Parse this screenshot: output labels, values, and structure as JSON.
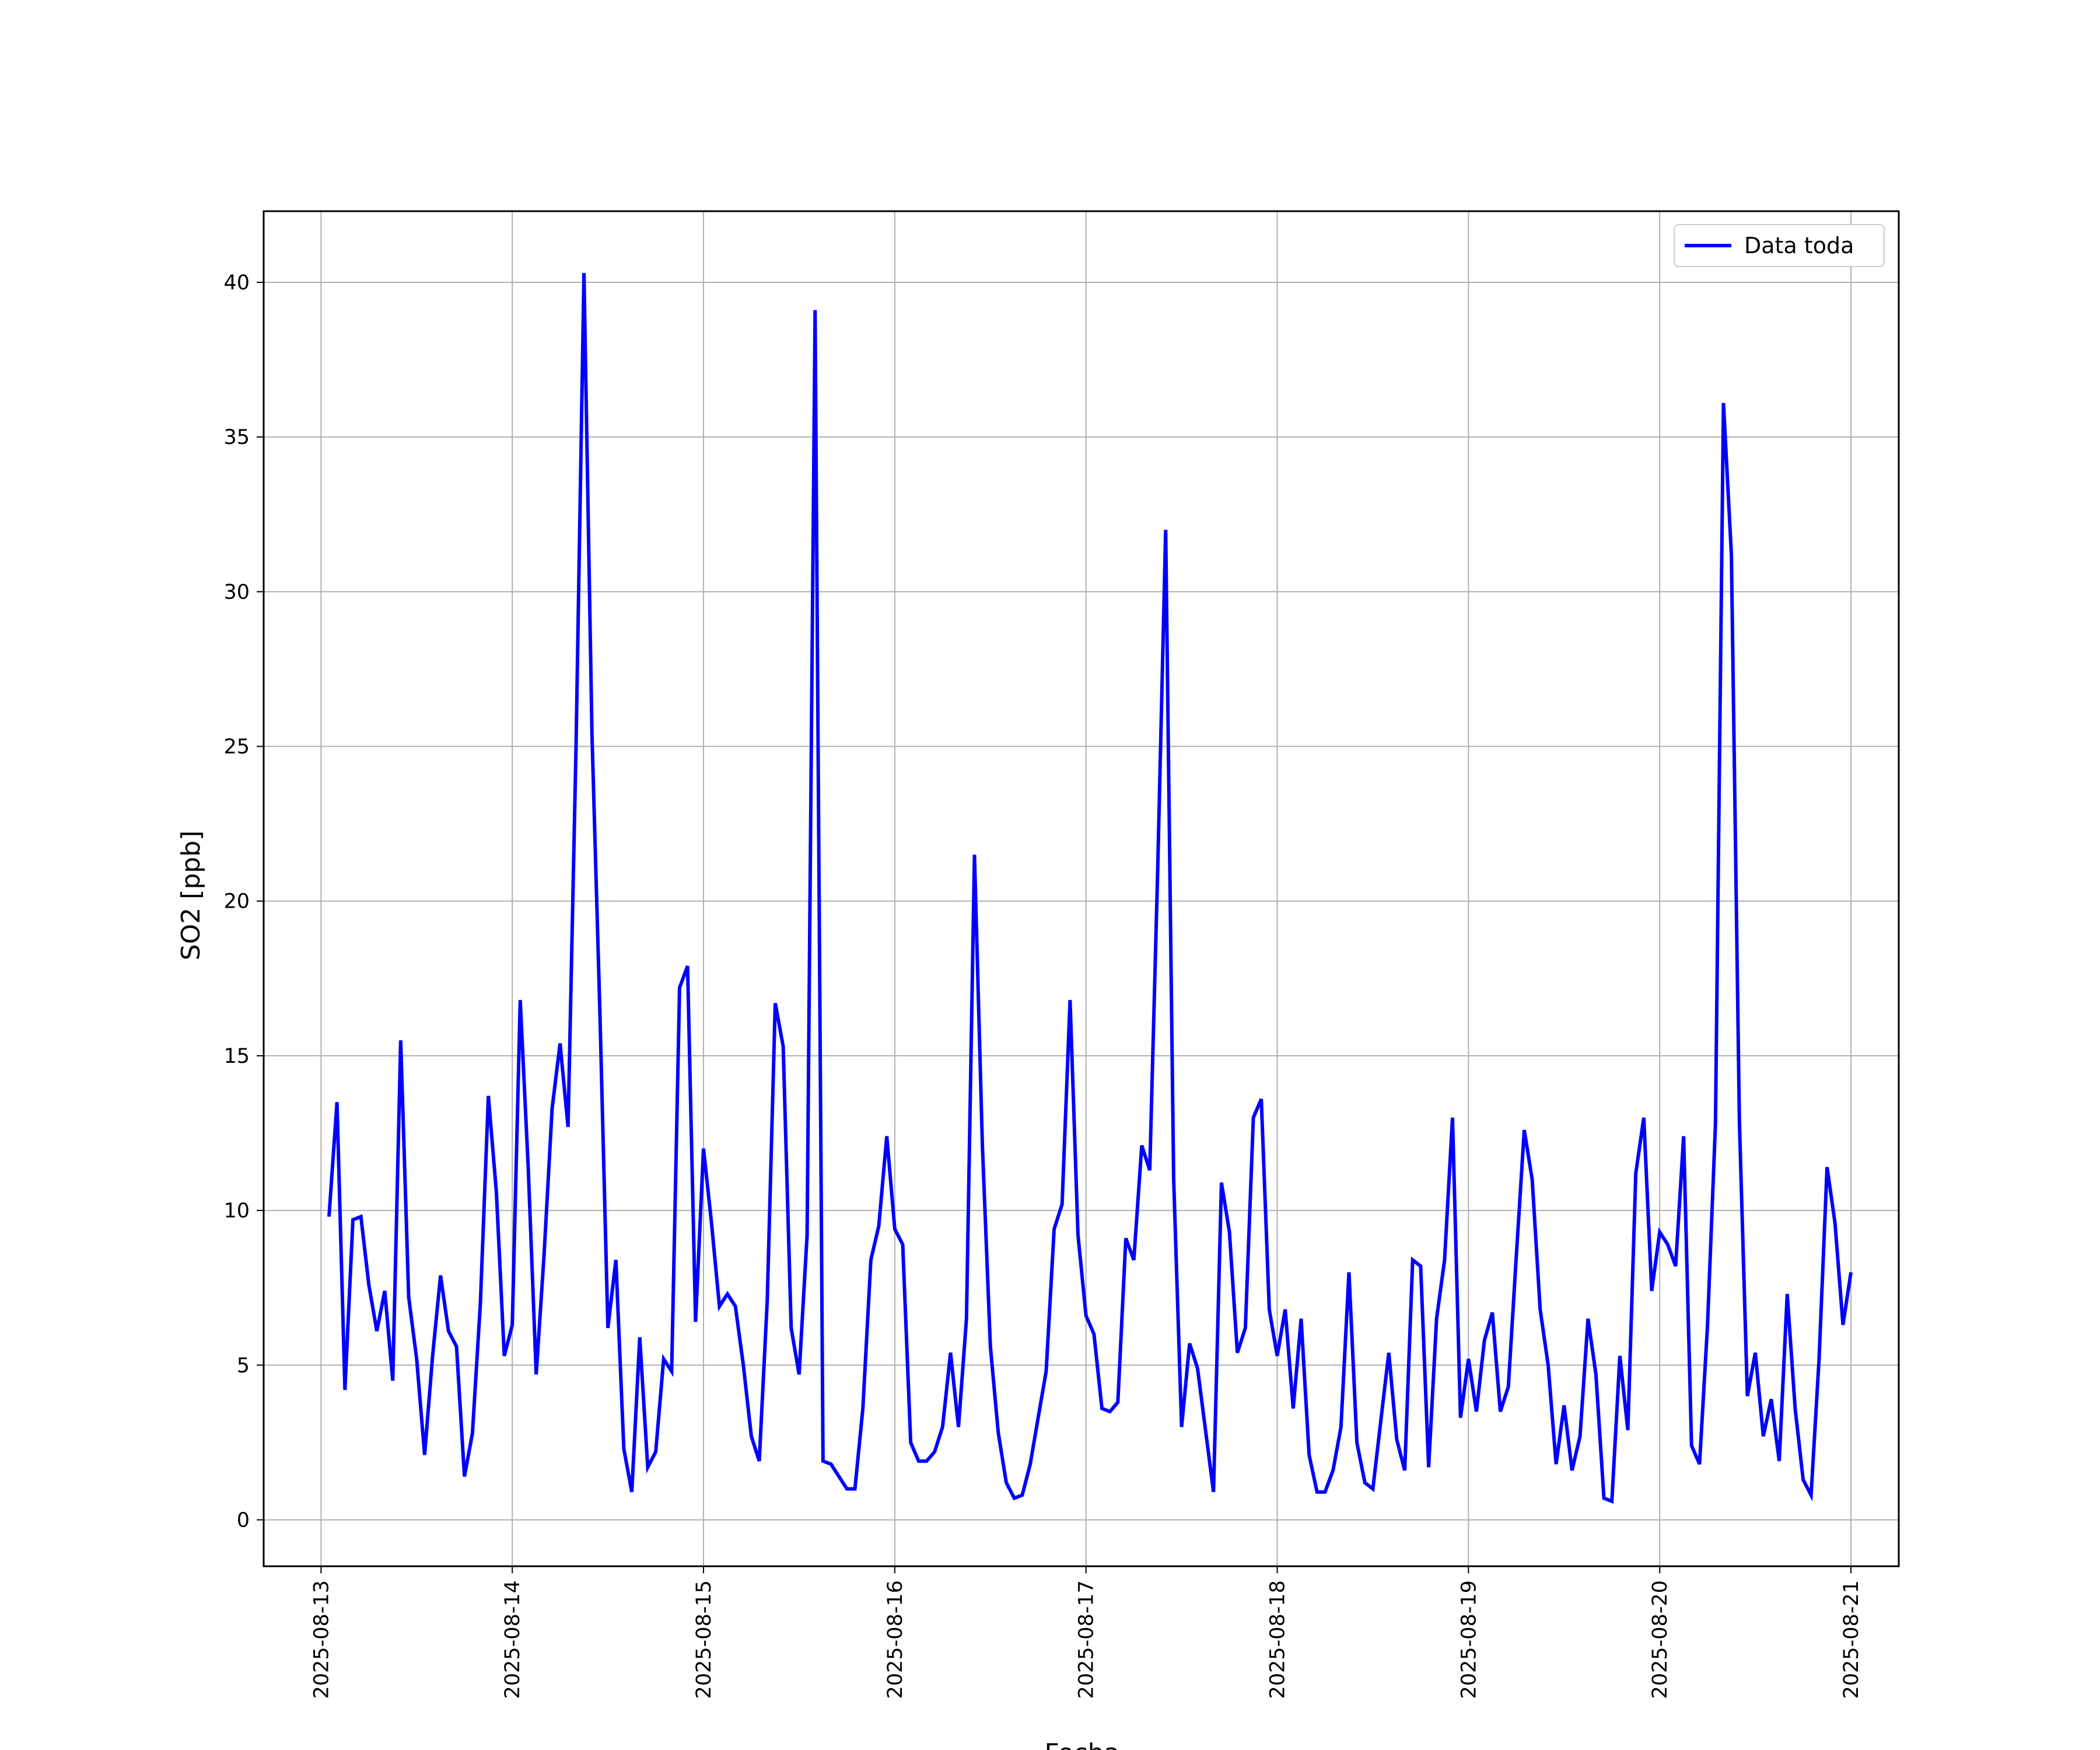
{
  "chart_data": {
    "type": "line",
    "xlabel": "Fecha",
    "ylabel": "SO2 [ppb]",
    "ylim": [
      -1.5,
      42.3
    ],
    "xlim": [
      "2025-08-12 16:48",
      "2025-08-21 06:00"
    ],
    "grid": true,
    "legend_position": "top-right",
    "x_ticks": [
      "2025-08-13",
      "2025-08-14",
      "2025-08-15",
      "2025-08-16",
      "2025-08-17",
      "2025-08-18",
      "2025-08-19",
      "2025-08-20",
      "2025-08-21"
    ],
    "y_ticks": [
      0,
      5,
      10,
      15,
      20,
      25,
      30,
      35,
      40
    ],
    "colors": {
      "line": "#0000ff",
      "grid": "#b0b0b0",
      "axes": "#000000"
    },
    "series": [
      {
        "name": "Data toda",
        "x": [
          "2025-08-13 01:00",
          "2025-08-13 02:00",
          "2025-08-13 03:00",
          "2025-08-13 04:00",
          "2025-08-13 05:00",
          "2025-08-13 06:00",
          "2025-08-13 07:00",
          "2025-08-13 08:00",
          "2025-08-13 09:00",
          "2025-08-13 10:00",
          "2025-08-13 11:00",
          "2025-08-13 12:00",
          "2025-08-13 13:00",
          "2025-08-13 14:00",
          "2025-08-13 15:00",
          "2025-08-13 16:00",
          "2025-08-13 17:00",
          "2025-08-13 18:00",
          "2025-08-13 19:00",
          "2025-08-13 20:00",
          "2025-08-13 21:00",
          "2025-08-13 22:00",
          "2025-08-13 23:00",
          "2025-08-14 00:00",
          "2025-08-14 01:00",
          "2025-08-14 02:00",
          "2025-08-14 03:00",
          "2025-08-14 04:00",
          "2025-08-14 05:00",
          "2025-08-14 06:00",
          "2025-08-14 07:00",
          "2025-08-14 08:00",
          "2025-08-14 09:00",
          "2025-08-14 10:00",
          "2025-08-14 11:00",
          "2025-08-14 12:00",
          "2025-08-14 13:00",
          "2025-08-14 14:00",
          "2025-08-14 15:00",
          "2025-08-14 16:00",
          "2025-08-14 17:00",
          "2025-08-14 18:00",
          "2025-08-14 19:00",
          "2025-08-14 20:00",
          "2025-08-14 21:00",
          "2025-08-14 22:00",
          "2025-08-14 23:00",
          "2025-08-15 00:00",
          "2025-08-15 01:00",
          "2025-08-15 02:00",
          "2025-08-15 03:00",
          "2025-08-15 04:00",
          "2025-08-15 05:00",
          "2025-08-15 06:00",
          "2025-08-15 07:00",
          "2025-08-15 08:00",
          "2025-08-15 09:00",
          "2025-08-15 10:00",
          "2025-08-15 11:00",
          "2025-08-15 12:00",
          "2025-08-15 13:00",
          "2025-08-15 14:00",
          "2025-08-15 15:00",
          "2025-08-15 16:00",
          "2025-08-15 17:00",
          "2025-08-15 18:00",
          "2025-08-15 19:00",
          "2025-08-15 20:00",
          "2025-08-15 21:00",
          "2025-08-15 22:00",
          "2025-08-15 23:00",
          "2025-08-16 00:00",
          "2025-08-16 01:00",
          "2025-08-16 02:00",
          "2025-08-16 03:00",
          "2025-08-16 04:00",
          "2025-08-16 05:00",
          "2025-08-16 06:00",
          "2025-08-16 07:00",
          "2025-08-16 08:00",
          "2025-08-16 09:00",
          "2025-08-16 10:00",
          "2025-08-16 11:00",
          "2025-08-16 12:00",
          "2025-08-16 13:00",
          "2025-08-16 14:00",
          "2025-08-16 15:00",
          "2025-08-16 16:00",
          "2025-08-16 17:00",
          "2025-08-16 18:00",
          "2025-08-16 19:00",
          "2025-08-16 20:00",
          "2025-08-16 21:00",
          "2025-08-16 22:00",
          "2025-08-16 23:00",
          "2025-08-17 00:00",
          "2025-08-17 01:00",
          "2025-08-17 02:00",
          "2025-08-17 03:00",
          "2025-08-17 04:00",
          "2025-08-17 05:00",
          "2025-08-17 06:00",
          "2025-08-17 07:00",
          "2025-08-17 08:00",
          "2025-08-17 09:00",
          "2025-08-17 10:00",
          "2025-08-17 11:00",
          "2025-08-17 12:00",
          "2025-08-17 13:00",
          "2025-08-17 14:00",
          "2025-08-17 15:00",
          "2025-08-17 16:00",
          "2025-08-17 17:00",
          "2025-08-17 18:00",
          "2025-08-17 19:00",
          "2025-08-17 20:00",
          "2025-08-17 21:00",
          "2025-08-17 22:00",
          "2025-08-17 23:00",
          "2025-08-18 00:00",
          "2025-08-18 01:00",
          "2025-08-18 02:00",
          "2025-08-18 03:00",
          "2025-08-18 04:00",
          "2025-08-18 05:00",
          "2025-08-18 06:00",
          "2025-08-18 07:00",
          "2025-08-18 08:00",
          "2025-08-18 09:00",
          "2025-08-18 10:00",
          "2025-08-18 11:00",
          "2025-08-18 12:00",
          "2025-08-18 13:00",
          "2025-08-18 14:00",
          "2025-08-18 15:00",
          "2025-08-18 16:00",
          "2025-08-18 17:00",
          "2025-08-18 18:00",
          "2025-08-18 19:00",
          "2025-08-18 20:00",
          "2025-08-18 21:00",
          "2025-08-18 22:00",
          "2025-08-18 23:00",
          "2025-08-19 00:00",
          "2025-08-19 01:00",
          "2025-08-19 02:00",
          "2025-08-19 03:00",
          "2025-08-19 04:00",
          "2025-08-19 05:00",
          "2025-08-19 06:00",
          "2025-08-19 07:00",
          "2025-08-19 08:00",
          "2025-08-19 09:00",
          "2025-08-19 10:00",
          "2025-08-19 11:00",
          "2025-08-19 12:00",
          "2025-08-19 13:00",
          "2025-08-19 14:00",
          "2025-08-19 15:00",
          "2025-08-19 16:00",
          "2025-08-19 17:00",
          "2025-08-19 18:00",
          "2025-08-19 19:00",
          "2025-08-19 20:00",
          "2025-08-19 21:00",
          "2025-08-19 22:00",
          "2025-08-19 23:00",
          "2025-08-20 00:00",
          "2025-08-20 01:00",
          "2025-08-20 02:00",
          "2025-08-20 03:00",
          "2025-08-20 04:00",
          "2025-08-20 05:00",
          "2025-08-20 06:00",
          "2025-08-20 07:00",
          "2025-08-20 08:00",
          "2025-08-20 09:00",
          "2025-08-20 10:00",
          "2025-08-20 11:00",
          "2025-08-20 12:00",
          "2025-08-20 13:00",
          "2025-08-20 14:00",
          "2025-08-20 15:00",
          "2025-08-20 16:00",
          "2025-08-20 17:00",
          "2025-08-20 18:00",
          "2025-08-20 19:00",
          "2025-08-20 20:00",
          "2025-08-20 21:00",
          "2025-08-20 22:00",
          "2025-08-20 23:00",
          "2025-08-21 00:00"
        ],
        "y": [
          9.8,
          13.5,
          4.2,
          9.7,
          9.8,
          7.6,
          6.1,
          7.4,
          4.5,
          15.5,
          7.2,
          5.2,
          2.1,
          5.3,
          7.9,
          6.1,
          5.6,
          1.4,
          2.8,
          7.0,
          13.7,
          10.6,
          5.3,
          6.3,
          16.8,
          11.4,
          4.7,
          8.6,
          13.3,
          15.4,
          12.7,
          25.0,
          40.3,
          25.4,
          16.4,
          6.2,
          8.4,
          2.3,
          0.9,
          5.9,
          1.7,
          2.2,
          5.2,
          4.8,
          17.2,
          17.9,
          6.4,
          12.0,
          9.6,
          6.9,
          7.3,
          6.9,
          5.0,
          2.7,
          1.9,
          7.1,
          16.7,
          15.3,
          6.2,
          4.7,
          9.2,
          39.1,
          1.9,
          1.8,
          1.4,
          1.0,
          1.0,
          3.6,
          8.4,
          9.5,
          12.4,
          9.4,
          8.9,
          2.5,
          1.9,
          1.9,
          2.2,
          3.0,
          5.4,
          3.0,
          6.5,
          21.5,
          12.1,
          5.6,
          2.8,
          1.2,
          0.7,
          0.8,
          1.8,
          3.3,
          4.8,
          9.4,
          10.2,
          16.8,
          9.2,
          6.6,
          6.0,
          3.6,
          3.5,
          3.8,
          9.1,
          8.4,
          12.1,
          11.3,
          21.0,
          32.0,
          11.0,
          3.0,
          5.7,
          4.9,
          2.9,
          0.9,
          10.9,
          9.3,
          5.4,
          6.2,
          13.0,
          13.6,
          6.8,
          5.3,
          6.8,
          3.6,
          6.5,
          2.1,
          0.9,
          0.9,
          1.6,
          3.0,
          8.0,
          2.5,
          1.2,
          1.0,
          3.2,
          5.4,
          2.6,
          1.6,
          8.4,
          8.2,
          1.7,
          6.5,
          8.4,
          13.0,
          3.3,
          5.2,
          3.5,
          5.8,
          6.7,
          3.5,
          4.3,
          8.5,
          12.6,
          11.0,
          6.8,
          5.0,
          1.8,
          3.7,
          1.6,
          2.7,
          6.5,
          4.7,
          0.7,
          0.6,
          5.3,
          2.9,
          11.2,
          13.0,
          7.4,
          9.3,
          8.9,
          8.2,
          12.4,
          2.4,
          1.8,
          6.3,
          12.8,
          36.1,
          31.2,
          12.9,
          4.0,
          5.4,
          2.7,
          3.9,
          1.9,
          7.3,
          3.6,
          1.3,
          0.8,
          5.2,
          11.4,
          9.6,
          6.3,
          8.0
        ]
      }
    ]
  }
}
